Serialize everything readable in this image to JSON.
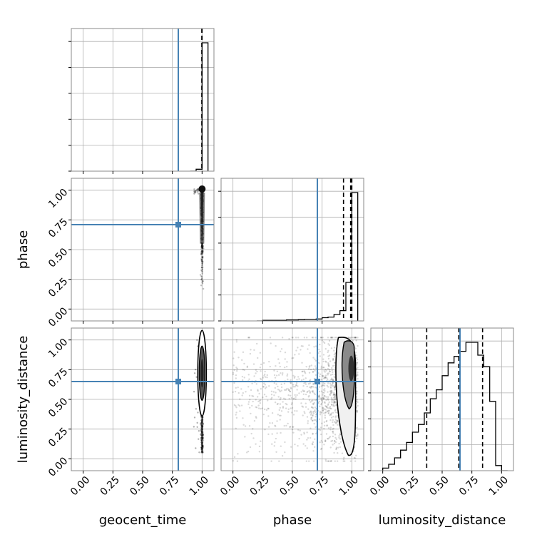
{
  "chart_data": {
    "type": "corner",
    "parameters": [
      "geocent_time",
      "phase",
      "luminosity_distance"
    ],
    "axis_labels": {
      "geocent_time": "geocent_time",
      "phase": "phase",
      "luminosity_distance": "luminosity_distance"
    },
    "tick_values": [
      0.0,
      0.25,
      0.5,
      0.75,
      1.0
    ],
    "tick_labels": [
      "0.00",
      "0.25",
      "0.50",
      "0.75",
      "1.00"
    ],
    "axis_range": [
      -0.1,
      1.1
    ],
    "grid": true,
    "truths": {
      "geocent_time": 0.8,
      "phase": 0.71,
      "luminosity_distance": 0.65
    },
    "truth_color": "#4682b4",
    "quantiles": {
      "geocent_time": [
        0.998,
        0.999,
        1.0
      ],
      "phase": [
        0.93,
        0.99,
        1.0
      ],
      "luminosity_distance": [
        0.37,
        0.64,
        0.84
      ]
    },
    "histograms": {
      "geocent_time": {
        "bin_edges": [
          0.9,
          0.95,
          1.0,
          1.05
        ],
        "counts": [
          0.0,
          0.015,
          1.0
        ]
      },
      "phase": {
        "bin_edges": [
          0.2,
          0.25,
          0.3,
          0.35,
          0.4,
          0.45,
          0.5,
          0.55,
          0.6,
          0.65,
          0.7,
          0.75,
          0.8,
          0.85,
          0.9,
          0.95,
          1.0,
          1.05
        ],
        "counts": [
          0.0,
          0.005,
          0.005,
          0.005,
          0.005,
          0.008,
          0.008,
          0.01,
          0.012,
          0.012,
          0.015,
          0.025,
          0.03,
          0.05,
          0.08,
          0.3,
          1.0
        ]
      },
      "luminosity_distance": {
        "bin_edges": [
          0.0,
          0.05,
          0.1,
          0.15,
          0.2,
          0.25,
          0.3,
          0.35,
          0.4,
          0.45,
          0.5,
          0.55,
          0.6,
          0.65,
          0.7,
          0.75,
          0.8,
          0.85,
          0.9,
          0.95,
          1.0,
          1.05
        ],
        "counts": [
          0.02,
          0.05,
          0.1,
          0.16,
          0.22,
          0.3,
          0.36,
          0.45,
          0.56,
          0.63,
          0.74,
          0.84,
          0.89,
          0.93,
          1.0,
          1.0,
          0.9,
          0.81,
          0.54,
          0.04,
          0.0
        ]
      }
    },
    "scatter_density": {
      "geocent_time|phase": {
        "x_center": 1.0,
        "x_spread": 0.004,
        "y_from": 0.1,
        "y_to": 1.0,
        "peak": 1.0
      },
      "geocent_time|luminosity_distance": {
        "x_center": 1.0,
        "x_spread": 0.004,
        "y_from": 0.05,
        "y_to": 1.0,
        "peak": 0.72
      },
      "phase|luminosity_distance": {
        "x_from": 0.0,
        "x_to": 1.05,
        "y_from": 0.0,
        "y_to": 1.0,
        "x_peak": 1.0,
        "y_peak": 0.75
      }
    }
  }
}
